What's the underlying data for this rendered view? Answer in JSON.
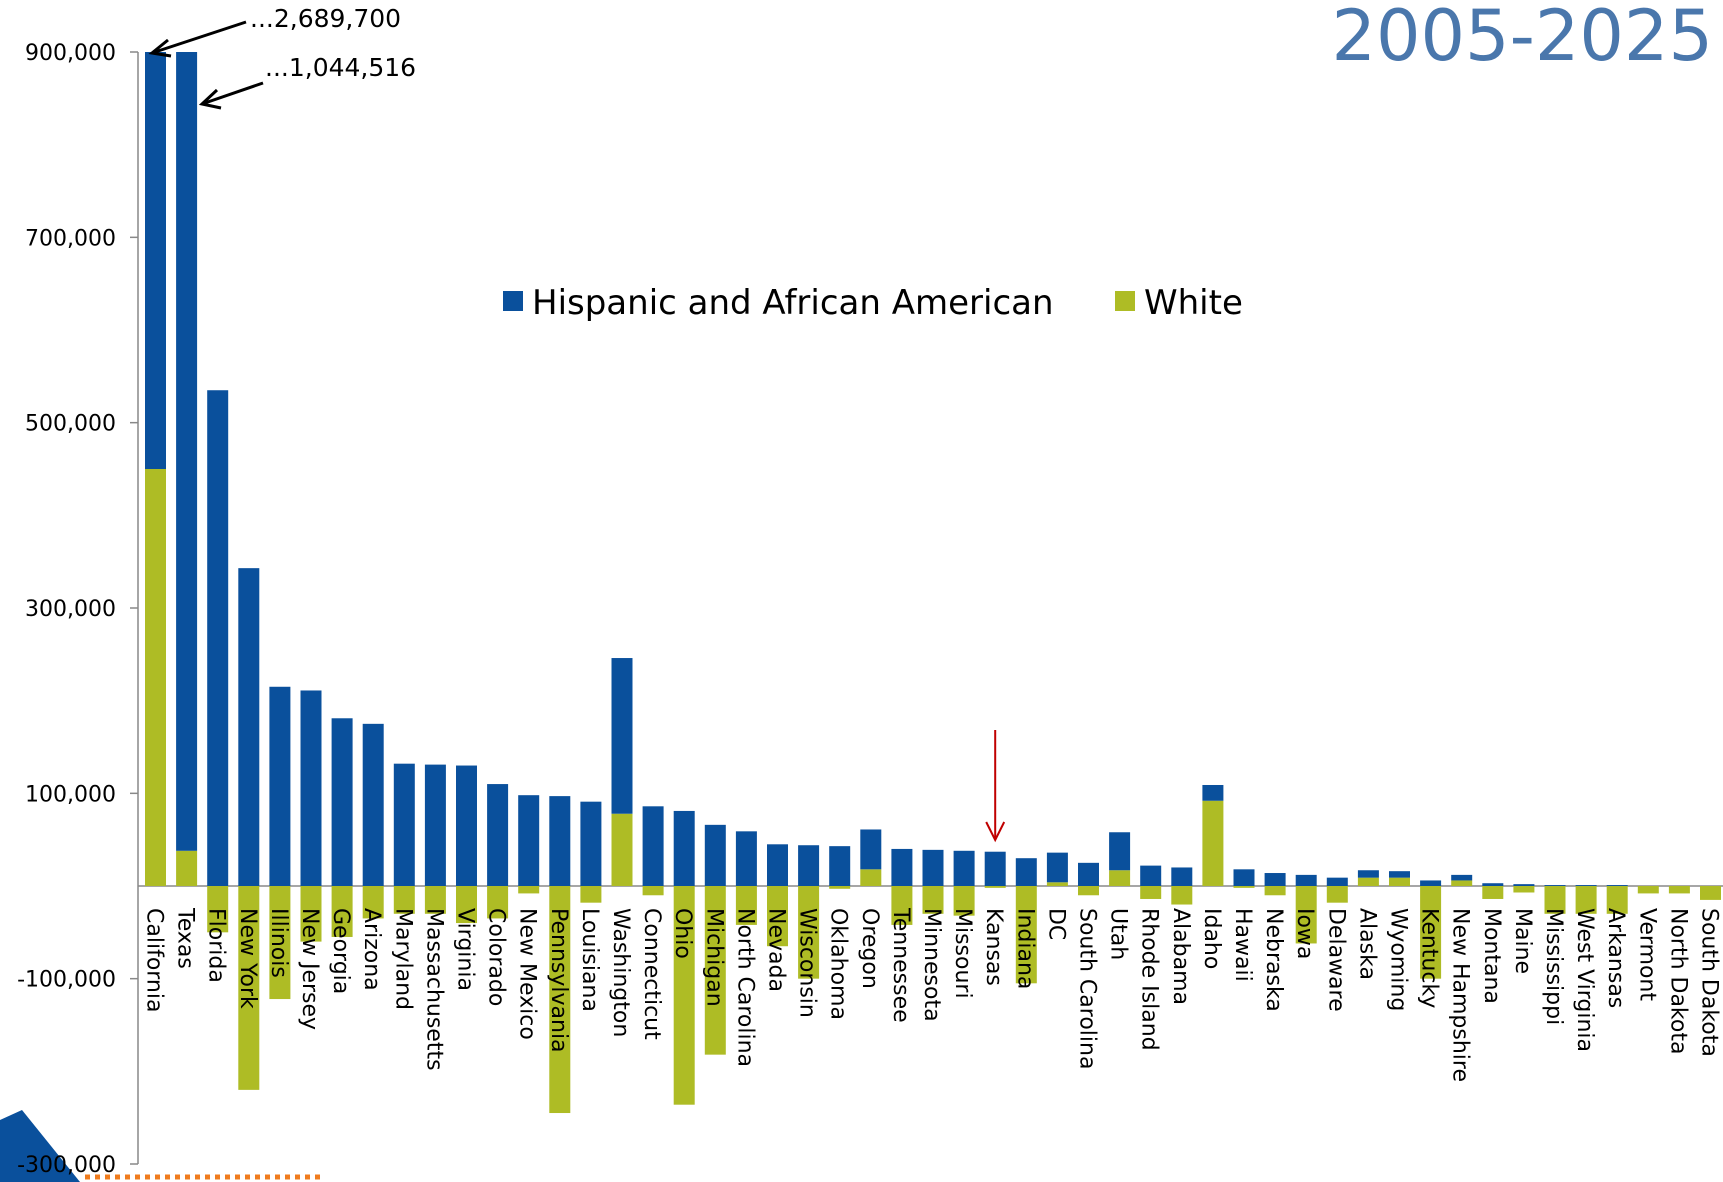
{
  "chart_data": {
    "type": "bar",
    "stacked": true,
    "period_label": "2005-2025",
    "categories": [
      "California",
      "Texas",
      "Florida",
      "New York",
      "Illinois",
      "New Jersey",
      "Georgia",
      "Arizona",
      "Maryland",
      "Massachusetts",
      "Virginia",
      "Colorado",
      "New Mexico",
      "Pennsylvania",
      "Louisiana",
      "Washington",
      "Connecticut",
      "Ohio",
      "Michigan",
      "North Carolina",
      "Nevada",
      "Wisconsin",
      "Oklahoma",
      "Oregon",
      "Tennessee",
      "Minnesota",
      "Missouri",
      "Kansas",
      "Indiana",
      "DC",
      "South Carolina",
      "Utah",
      "Rhode Island",
      "Alabama",
      "Idaho",
      "Hawaii",
      "Nebraska",
      "Iowa",
      "Delaware",
      "Alaska",
      "Wyoming",
      "Kentucky",
      "New Hampshire",
      "Montana",
      "Maine",
      "Mississippi",
      "West Virginia",
      "Arkansas",
      "Vermont",
      "North Dakota",
      "South Dakota"
    ],
    "series": [
      {
        "name": "Hispanic and African American",
        "color": "#0a509c",
        "values": [
          450000,
          862000,
          535000,
          343000,
          215000,
          211000,
          181000,
          175000,
          132000,
          131000,
          130000,
          110000,
          98000,
          97000,
          91000,
          168000,
          86000,
          81000,
          66000,
          59000,
          45000,
          44000,
          43000,
          43000,
          40000,
          39000,
          38000,
          37000,
          30000,
          32000,
          25000,
          41000,
          22000,
          20000,
          17000,
          18000,
          14000,
          12000,
          9000,
          8000,
          7000,
          6000,
          6000,
          3000,
          2000,
          1000,
          1000,
          1000,
          0,
          0,
          0
        ]
      },
      {
        "name": "White",
        "color": "#aebc25",
        "values": [
          450000,
          38000,
          -50000,
          -220000,
          -122000,
          -60000,
          -55000,
          -35000,
          -30000,
          -30000,
          -40000,
          -35000,
          -8000,
          -245000,
          -18000,
          78000,
          -10000,
          -236000,
          -182000,
          -42000,
          -65000,
          -100000,
          -3000,
          18000,
          -42000,
          -30000,
          -32000,
          -2000,
          -105000,
          4000,
          -10000,
          17000,
          -14000,
          -20000,
          92000,
          -2000,
          -10000,
          -62000,
          -18000,
          9000,
          9000,
          -100000,
          6000,
          -14000,
          -7000,
          -30000,
          -30000,
          -30000,
          -8000,
          -8000,
          -15000
        ]
      }
    ],
    "ylim": [
      -300000,
      900000
    ],
    "yticks": [
      "900,000",
      "700,000",
      "500,000",
      "300,000",
      "100,000",
      "-100,000",
      "-300,000"
    ],
    "ytick_values": [
      900000,
      700000,
      500000,
      300000,
      100000,
      -100000,
      -300000
    ],
    "annotations": [
      "...2,689,700",
      "...1,044,516"
    ],
    "legend_position": "top-center",
    "highlight_category": "Kansas"
  }
}
